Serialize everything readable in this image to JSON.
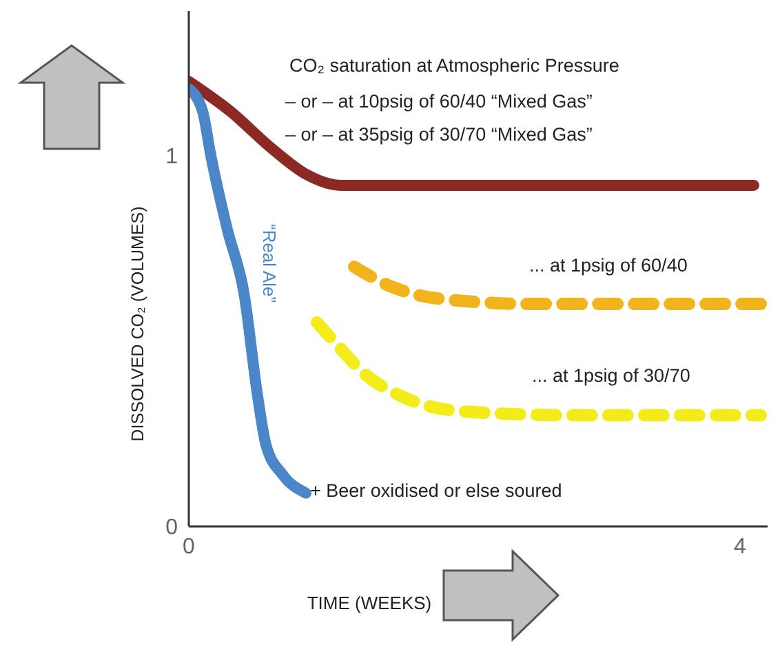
{
  "chart_data": {
    "type": "line",
    "xlabel": "TIME (WEEKS)",
    "ylabel": "DISSOLVED CO₂ (VOLUMES)",
    "xlim": [
      0,
      4.2
    ],
    "xticks": [
      0,
      4
    ],
    "ylim": [
      0,
      1.39
    ],
    "yticks": [
      0,
      1
    ],
    "grid": false,
    "legend": false,
    "marker": "none",
    "series": [
      {
        "color": "#8b2a22",
        "line_style": "solid",
        "x": [
          0,
          0.3,
          0.6,
          0.85,
          1.1,
          4.1
        ],
        "values": [
          1.2,
          1.12,
          1.02,
          0.95,
          0.92,
          0.92
        ]
      },
      {
        "name": "“Real Ale”",
        "color": "#4a86c8",
        "line_style": "solid",
        "x": [
          0,
          0.1,
          0.16,
          0.28,
          0.4,
          0.5,
          0.56,
          0.68,
          0.85
        ],
        "values": [
          1.18,
          1.12,
          1.0,
          0.8,
          0.63,
          0.35,
          0.22,
          0.14,
          0.09
        ]
      },
      {
        "color": "#f2b41c",
        "line_style": "dashed",
        "x": [
          1.2,
          1.45,
          1.8,
          2.5,
          4.15
        ],
        "values": [
          0.7,
          0.65,
          0.615,
          0.6,
          0.6
        ]
      },
      {
        "color": "#f3ec1a",
        "line_style": "dashed",
        "x": [
          0.93,
          1.1,
          1.25,
          1.55,
          2,
          2.8,
          4.15
        ],
        "values": [
          0.55,
          0.48,
          0.42,
          0.35,
          0.31,
          0.3,
          0.3
        ]
      }
    ],
    "annotations": [
      "CO₂ saturation at Atmospheric Pressure",
      "– or –  at 10psig of 60/40 “Mixed Gas”",
      "– or –  at 35psig of 30/70 “Mixed Gas”",
      "... at 1psig of 60/40",
      "... at 1psig of 30/70",
      {
        "text": "+ Beer oxidised or else soured",
        "x": 0.88,
        "y": 0.08
      }
    ]
  }
}
